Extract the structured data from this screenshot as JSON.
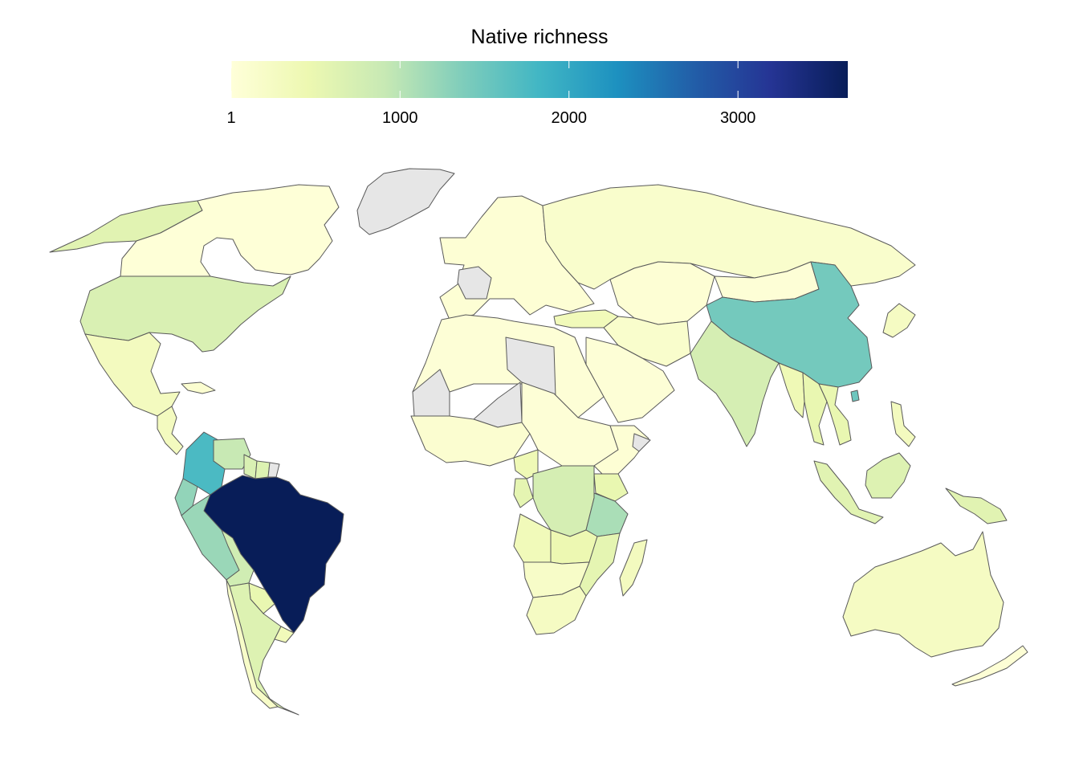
{
  "legend": {
    "title": "Native richness",
    "min": 1,
    "max": 3650,
    "ticks": [
      {
        "value": 1,
        "label": "1"
      },
      {
        "value": 1000,
        "label": "1000"
      },
      {
        "value": 2000,
        "label": "2000"
      },
      {
        "value": 3000,
        "label": "3000"
      }
    ],
    "palette": [
      "#ffffd9",
      "#edf8b1",
      "#c7e9b4",
      "#7fcdbb",
      "#41b6c4",
      "#1d91c0",
      "#225ea8",
      "#253494",
      "#081d58"
    ],
    "no_data_color": "#e6e6e6"
  },
  "chart_data": {
    "type": "choropleth",
    "variable": "Native richness",
    "regions": [
      {
        "name": "Brazil",
        "value": 3650
      },
      {
        "name": "Colombia",
        "value": 1750
      },
      {
        "name": "China",
        "value": 1450
      },
      {
        "name": "Peru",
        "value": 1200
      },
      {
        "name": "Ecuador",
        "value": 1250
      },
      {
        "name": "Venezuela",
        "value": 900
      },
      {
        "name": "Guyana",
        "value": 700
      },
      {
        "name": "Suriname",
        "value": 650
      },
      {
        "name": "Bolivia",
        "value": 800
      },
      {
        "name": "Paraguay",
        "value": 500
      },
      {
        "name": "Argentina",
        "value": 650
      },
      {
        "name": "Chile",
        "value": 200
      },
      {
        "name": "Uruguay",
        "value": 350
      },
      {
        "name": "Tanzania",
        "value": 1100
      },
      {
        "name": "DR Congo",
        "value": 750
      },
      {
        "name": "Kenya",
        "value": 500
      },
      {
        "name": "Madagascar",
        "value": 300
      },
      {
        "name": "Angola",
        "value": 350
      },
      {
        "name": "Zambia",
        "value": 450
      },
      {
        "name": "Mozambique",
        "value": 550
      },
      {
        "name": "South Africa",
        "value": 250
      },
      {
        "name": "Cameroon",
        "value": 400
      },
      {
        "name": "Gabon",
        "value": 550
      },
      {
        "name": "India",
        "value": 750
      },
      {
        "name": "Indonesia",
        "value": 600
      },
      {
        "name": "Malaysia",
        "value": 650
      },
      {
        "name": "Papua New Guinea",
        "value": 600
      },
      {
        "name": "Thailand",
        "value": 500
      },
      {
        "name": "Vietnam",
        "value": 500
      },
      {
        "name": "Myanmar",
        "value": 400
      },
      {
        "name": "Philippines",
        "value": 300
      },
      {
        "name": "Taiwan",
        "value": 1500
      },
      {
        "name": "Russia",
        "value": 150
      },
      {
        "name": "Australia",
        "value": 250
      },
      {
        "name": "New Zealand",
        "value": 50
      },
      {
        "name": "United States",
        "value": 700
      },
      {
        "name": "Canada",
        "value": 20
      },
      {
        "name": "Alaska",
        "value": 600
      },
      {
        "name": "Mexico",
        "value": 300
      },
      {
        "name": "Central America",
        "value": 300
      },
      {
        "name": "Cuba",
        "value": 100
      },
      {
        "name": "Europe",
        "value": 60
      },
      {
        "name": "Turkey",
        "value": 350
      },
      {
        "name": "Iran",
        "value": 150
      },
      {
        "name": "Central Asia",
        "value": 60
      },
      {
        "name": "Mongolia",
        "value": 40
      },
      {
        "name": "Japan",
        "value": 250
      },
      {
        "name": "Arabian Peninsula",
        "value": 40
      },
      {
        "name": "North Africa",
        "value": 40
      },
      {
        "name": "Sahel",
        "value": 40
      },
      {
        "name": "West Africa",
        "value": 100
      },
      {
        "name": "Horn of Africa",
        "value": 60
      },
      {
        "name": "Southern Africa interior",
        "value": 200
      },
      {
        "name": "Greenland",
        "value": null
      },
      {
        "name": "France",
        "value": null
      },
      {
        "name": "Libya",
        "value": null
      },
      {
        "name": "Niger",
        "value": null
      },
      {
        "name": "Mauritania",
        "value": null
      },
      {
        "name": "French Guiana",
        "value": null
      },
      {
        "name": "Somalia",
        "value": null
      }
    ]
  }
}
